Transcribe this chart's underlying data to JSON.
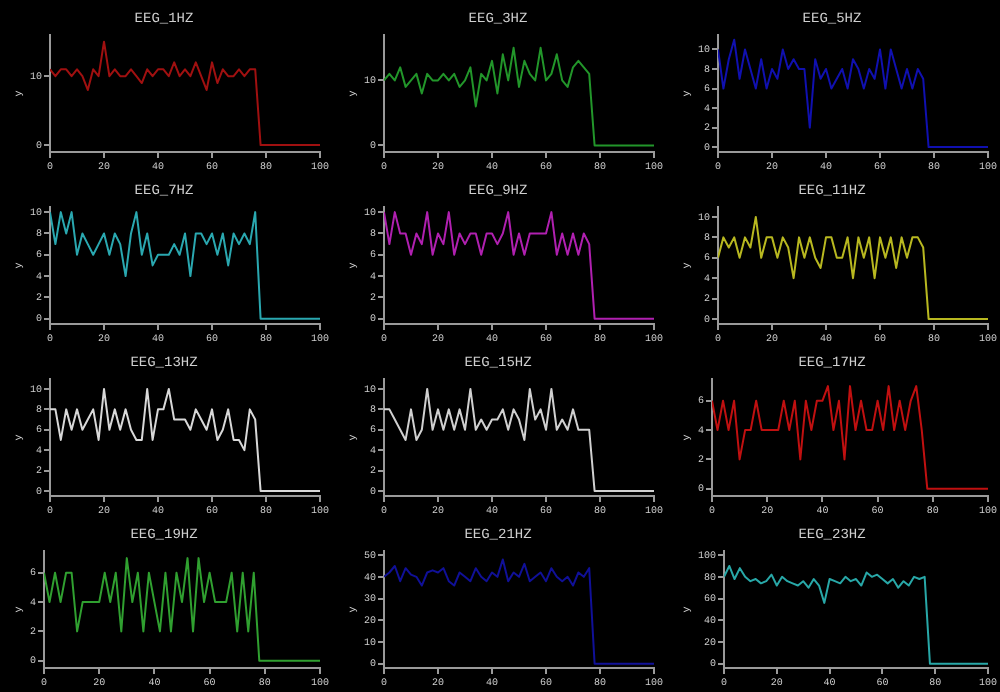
{
  "chart_data": [
    {
      "type": "line",
      "title": "EEG_1HZ",
      "ylabel": "y",
      "x": [
        0,
        2,
        4,
        6,
        8,
        10,
        12,
        14,
        16,
        18,
        20,
        22,
        24,
        26,
        28,
        30,
        32,
        34,
        36,
        38,
        40,
        42,
        44,
        46,
        48,
        50,
        52,
        54,
        56,
        58,
        60,
        62,
        64,
        66,
        68,
        70,
        72,
        74,
        76,
        78,
        100
      ],
      "xlim": [
        0,
        100
      ],
      "xticks": [
        0,
        20,
        40,
        60,
        80,
        100
      ],
      "ylim": [
        -1,
        16
      ],
      "yticks": [
        0,
        10
      ],
      "series": [
        {
          "color": "#a01010",
          "values": [
            11,
            10,
            11,
            11,
            10,
            11,
            10,
            8,
            11,
            10,
            15,
            10,
            11,
            10,
            10,
            11,
            10,
            9,
            11,
            10,
            11,
            11,
            10,
            12,
            10,
            11,
            10,
            12,
            10,
            8,
            12,
            9,
            11,
            10,
            10,
            11,
            10,
            11,
            11,
            0,
            0
          ]
        }
      ]
    },
    {
      "type": "line",
      "title": "EEG_3HZ",
      "ylabel": "y",
      "x": [
        0,
        2,
        4,
        6,
        8,
        10,
        12,
        14,
        16,
        18,
        20,
        22,
        24,
        26,
        28,
        30,
        32,
        34,
        36,
        38,
        40,
        42,
        44,
        46,
        48,
        50,
        52,
        54,
        56,
        58,
        60,
        62,
        64,
        66,
        68,
        70,
        72,
        74,
        76,
        78,
        100
      ],
      "xlim": [
        0,
        100
      ],
      "xticks": [
        0,
        20,
        40,
        60,
        80,
        100
      ],
      "ylim": [
        -1,
        17
      ],
      "yticks": [
        0,
        10
      ],
      "series": [
        {
          "color": "#22962a",
          "values": [
            10,
            11,
            10,
            12,
            9,
            10,
            11,
            8,
            11,
            10,
            10,
            11,
            10,
            11,
            9,
            10,
            12,
            6,
            11,
            10,
            13,
            8,
            14,
            10,
            15,
            9,
            13,
            11,
            10,
            15,
            10,
            11,
            14,
            10,
            9,
            12,
            13,
            12,
            11,
            0,
            0
          ]
        }
      ]
    },
    {
      "type": "line",
      "title": "EEG_5HZ",
      "ylabel": "y",
      "x": [
        0,
        2,
        4,
        6,
        8,
        10,
        12,
        14,
        16,
        18,
        20,
        22,
        24,
        26,
        28,
        30,
        32,
        34,
        36,
        38,
        40,
        42,
        44,
        46,
        48,
        50,
        52,
        54,
        56,
        58,
        60,
        62,
        64,
        66,
        68,
        70,
        72,
        74,
        76,
        78,
        100
      ],
      "xlim": [
        0,
        100
      ],
      "xticks": [
        0,
        20,
        40,
        60,
        80,
        100
      ],
      "ylim": [
        -0.5,
        11.5
      ],
      "yticks": [
        0,
        2,
        4,
        6,
        8,
        10
      ],
      "series": [
        {
          "color": "#1010b0",
          "values": [
            10,
            6,
            9,
            11,
            7,
            10,
            8,
            6,
            9,
            6,
            8,
            7,
            10,
            8,
            9,
            8,
            8,
            2,
            9,
            7,
            8,
            6,
            7,
            8,
            6,
            9,
            8,
            6,
            8,
            7,
            10,
            6,
            10,
            8,
            6,
            8,
            6,
            8,
            7,
            0,
            0
          ]
        }
      ]
    },
    {
      "type": "line",
      "title": "EEG_7HZ",
      "ylabel": "y",
      "x": [
        0,
        2,
        4,
        6,
        8,
        10,
        12,
        14,
        16,
        18,
        20,
        22,
        24,
        26,
        28,
        30,
        32,
        34,
        36,
        38,
        40,
        42,
        44,
        46,
        48,
        50,
        52,
        54,
        56,
        58,
        60,
        62,
        64,
        66,
        68,
        70,
        72,
        74,
        76,
        78,
        100
      ],
      "xlim": [
        0,
        100
      ],
      "xticks": [
        0,
        20,
        40,
        60,
        80,
        100
      ],
      "ylim": [
        -0.5,
        10.5
      ],
      "yticks": [
        0,
        2,
        4,
        6,
        8,
        10
      ],
      "series": [
        {
          "color": "#2aa8b0",
          "values": [
            10,
            7,
            10,
            8,
            10,
            6,
            8,
            7,
            6,
            7,
            8,
            6,
            8,
            7,
            4,
            8,
            10,
            6,
            8,
            5,
            6,
            6,
            6,
            7,
            6,
            8,
            4,
            8,
            8,
            7,
            8,
            6,
            8,
            5,
            8,
            7,
            8,
            7,
            10,
            0,
            0
          ]
        }
      ]
    },
    {
      "type": "line",
      "title": "EEG_9HZ",
      "ylabel": "y",
      "x": [
        0,
        2,
        4,
        6,
        8,
        10,
        12,
        14,
        16,
        18,
        20,
        22,
        24,
        26,
        28,
        30,
        32,
        34,
        36,
        38,
        40,
        42,
        44,
        46,
        48,
        50,
        52,
        54,
        56,
        58,
        60,
        62,
        64,
        66,
        68,
        70,
        72,
        74,
        76,
        78,
        100
      ],
      "xlim": [
        0,
        100
      ],
      "xticks": [
        0,
        20,
        40,
        60,
        80,
        100
      ],
      "ylim": [
        -0.5,
        10.5
      ],
      "yticks": [
        0,
        2,
        4,
        6,
        8,
        10
      ],
      "series": [
        {
          "color": "#b020b0",
          "values": [
            10,
            7,
            10,
            8,
            8,
            6,
            8,
            7,
            10,
            6,
            8,
            7,
            10,
            6,
            8,
            7,
            8,
            8,
            6,
            8,
            8,
            7,
            8,
            10,
            6,
            8,
            6,
            8,
            8,
            8,
            8,
            10,
            6,
            8,
            6,
            8,
            6,
            8,
            7,
            0,
            0
          ]
        }
      ]
    },
    {
      "type": "line",
      "title": "EEG_11HZ",
      "ylabel": "y",
      "x": [
        0,
        2,
        4,
        6,
        8,
        10,
        12,
        14,
        16,
        18,
        20,
        22,
        24,
        26,
        28,
        30,
        32,
        34,
        36,
        38,
        40,
        42,
        44,
        46,
        48,
        50,
        52,
        54,
        56,
        58,
        60,
        62,
        64,
        66,
        68,
        70,
        72,
        74,
        76,
        78,
        100
      ],
      "xlim": [
        0,
        100
      ],
      "xticks": [
        0,
        20,
        40,
        60,
        80,
        100
      ],
      "ylim": [
        -0.5,
        11
      ],
      "yticks": [
        0,
        2,
        4,
        6,
        8,
        10
      ],
      "series": [
        {
          "color": "#b8b820",
          "values": [
            6,
            8,
            7,
            8,
            6,
            8,
            7,
            10,
            6,
            8,
            8,
            6,
            8,
            7,
            4,
            8,
            6,
            8,
            6,
            5,
            8,
            8,
            6,
            6,
            8,
            4,
            8,
            6,
            8,
            4,
            8,
            6,
            8,
            5,
            8,
            6,
            8,
            8,
            7,
            0,
            0
          ]
        }
      ]
    },
    {
      "type": "line",
      "title": "EEG_13HZ",
      "ylabel": "y",
      "x": [
        0,
        2,
        4,
        6,
        8,
        10,
        12,
        14,
        16,
        18,
        20,
        22,
        24,
        26,
        28,
        30,
        32,
        34,
        36,
        38,
        40,
        42,
        44,
        46,
        48,
        50,
        52,
        54,
        56,
        58,
        60,
        62,
        64,
        66,
        68,
        70,
        72,
        74,
        76,
        78,
        100
      ],
      "xlim": [
        0,
        100
      ],
      "xticks": [
        0,
        20,
        40,
        60,
        80,
        100
      ],
      "ylim": [
        -0.5,
        11
      ],
      "yticks": [
        0,
        2,
        4,
        6,
        8,
        10
      ],
      "series": [
        {
          "color": "#d8d8d8",
          "values": [
            8,
            8,
            5,
            8,
            6,
            8,
            6,
            7,
            8,
            5,
            10,
            6,
            8,
            6,
            8,
            6,
            5,
            5,
            10,
            5,
            8,
            8,
            10,
            7,
            7,
            7,
            6,
            8,
            7,
            6,
            8,
            5,
            6,
            8,
            5,
            5,
            4,
            8,
            7,
            0,
            0
          ]
        }
      ]
    },
    {
      "type": "line",
      "title": "EEG_15HZ",
      "ylabel": "y",
      "x": [
        0,
        2,
        4,
        6,
        8,
        10,
        12,
        14,
        16,
        18,
        20,
        22,
        24,
        26,
        28,
        30,
        32,
        34,
        36,
        38,
        40,
        42,
        44,
        46,
        48,
        50,
        52,
        54,
        56,
        58,
        60,
        62,
        64,
        66,
        68,
        70,
        72,
        74,
        76,
        78,
        100
      ],
      "xlim": [
        0,
        100
      ],
      "xticks": [
        0,
        20,
        40,
        60,
        80,
        100
      ],
      "ylim": [
        -0.5,
        11
      ],
      "yticks": [
        0,
        2,
        4,
        6,
        8,
        10
      ],
      "series": [
        {
          "color": "#d0d0d0",
          "values": [
            8,
            8,
            7,
            6,
            5,
            8,
            5,
            6,
            10,
            6,
            8,
            6,
            8,
            6,
            8,
            6,
            10,
            6,
            7,
            6,
            7,
            7,
            8,
            6,
            8,
            7,
            5,
            10,
            7,
            8,
            6,
            10,
            6,
            7,
            6,
            8,
            6,
            6,
            6,
            0,
            0
          ]
        }
      ]
    },
    {
      "type": "line",
      "title": "EEG_17HZ",
      "ylabel": "y",
      "x": [
        0,
        2,
        4,
        6,
        8,
        10,
        12,
        14,
        16,
        18,
        20,
        22,
        24,
        26,
        28,
        30,
        32,
        34,
        36,
        38,
        40,
        42,
        44,
        46,
        48,
        50,
        52,
        54,
        56,
        58,
        60,
        62,
        64,
        66,
        68,
        70,
        72,
        74,
        76,
        78,
        100
      ],
      "xlim": [
        0,
        100
      ],
      "xticks": [
        0,
        20,
        40,
        60,
        80,
        100
      ],
      "ylim": [
        -0.5,
        7.5
      ],
      "yticks": [
        0,
        2,
        4,
        6
      ],
      "series": [
        {
          "color": "#c01010",
          "values": [
            6,
            4,
            6,
            4,
            6,
            2,
            4,
            4,
            6,
            4,
            4,
            4,
            4,
            6,
            4,
            6,
            2,
            6,
            4,
            6,
            6,
            7,
            4,
            6,
            2,
            7,
            4,
            6,
            4,
            4,
            6,
            4,
            7,
            4,
            6,
            4,
            6,
            7,
            4,
            0,
            0
          ]
        }
      ]
    },
    {
      "type": "line",
      "title": "EEG_19HZ",
      "ylabel": "y",
      "x": [
        0,
        2,
        4,
        6,
        8,
        10,
        12,
        14,
        16,
        18,
        20,
        22,
        24,
        26,
        28,
        30,
        32,
        34,
        36,
        38,
        40,
        42,
        44,
        46,
        48,
        50,
        52,
        54,
        56,
        58,
        60,
        62,
        64,
        66,
        68,
        70,
        72,
        74,
        76,
        78,
        100
      ],
      "xlim": [
        0,
        100
      ],
      "xticks": [
        0,
        20,
        40,
        60,
        80,
        100
      ],
      "ylim": [
        -0.5,
        7.5
      ],
      "yticks": [
        0,
        2,
        4,
        6
      ],
      "series": [
        {
          "color": "#30a030",
          "values": [
            6,
            4,
            6,
            4,
            6,
            6,
            2,
            4,
            4,
            4,
            4,
            6,
            4,
            6,
            2,
            7,
            4,
            6,
            2,
            6,
            4,
            2,
            6,
            2,
            6,
            4,
            7,
            2,
            7,
            4,
            6,
            4,
            4,
            4,
            6,
            2,
            6,
            2,
            6,
            0,
            0
          ]
        }
      ]
    },
    {
      "type": "line",
      "title": "EEG_21HZ",
      "ylabel": "y",
      "x": [
        0,
        2,
        4,
        6,
        8,
        10,
        12,
        14,
        16,
        18,
        20,
        22,
        24,
        26,
        28,
        30,
        32,
        34,
        36,
        38,
        40,
        42,
        44,
        46,
        48,
        50,
        52,
        54,
        56,
        58,
        60,
        62,
        64,
        66,
        68,
        70,
        72,
        74,
        76,
        78,
        100
      ],
      "xlim": [
        0,
        100
      ],
      "xticks": [
        0,
        20,
        40,
        60,
        80,
        100
      ],
      "ylim": [
        -2,
        52
      ],
      "yticks": [
        0,
        10,
        20,
        30,
        40,
        50
      ],
      "series": [
        {
          "color": "#101098",
          "values": [
            40,
            42,
            45,
            38,
            44,
            41,
            40,
            36,
            42,
            43,
            42,
            44,
            38,
            36,
            42,
            40,
            38,
            44,
            40,
            38,
            42,
            40,
            48,
            38,
            42,
            40,
            46,
            38,
            40,
            42,
            38,
            44,
            40,
            38,
            40,
            36,
            42,
            40,
            44,
            0,
            0
          ]
        }
      ]
    },
    {
      "type": "line",
      "title": "EEG_23HZ",
      "ylabel": "y",
      "x": [
        0,
        2,
        4,
        6,
        8,
        10,
        12,
        14,
        16,
        18,
        20,
        22,
        24,
        26,
        28,
        30,
        32,
        34,
        36,
        38,
        40,
        42,
        44,
        46,
        48,
        50,
        52,
        54,
        56,
        58,
        60,
        62,
        64,
        66,
        68,
        70,
        72,
        74,
        76,
        78,
        100
      ],
      "xlim": [
        0,
        100
      ],
      "xticks": [
        0,
        20,
        40,
        60,
        80,
        100
      ],
      "ylim": [
        -4,
        104
      ],
      "yticks": [
        0,
        20,
        40,
        60,
        80,
        100
      ],
      "series": [
        {
          "color": "#28a8a8",
          "values": [
            80,
            90,
            78,
            88,
            80,
            76,
            78,
            74,
            76,
            82,
            72,
            80,
            76,
            74,
            72,
            76,
            70,
            78,
            72,
            56,
            78,
            76,
            74,
            80,
            76,
            78,
            72,
            84,
            80,
            82,
            78,
            74,
            78,
            70,
            76,
            72,
            80,
            78,
            80,
            0,
            0
          ]
        }
      ]
    }
  ]
}
